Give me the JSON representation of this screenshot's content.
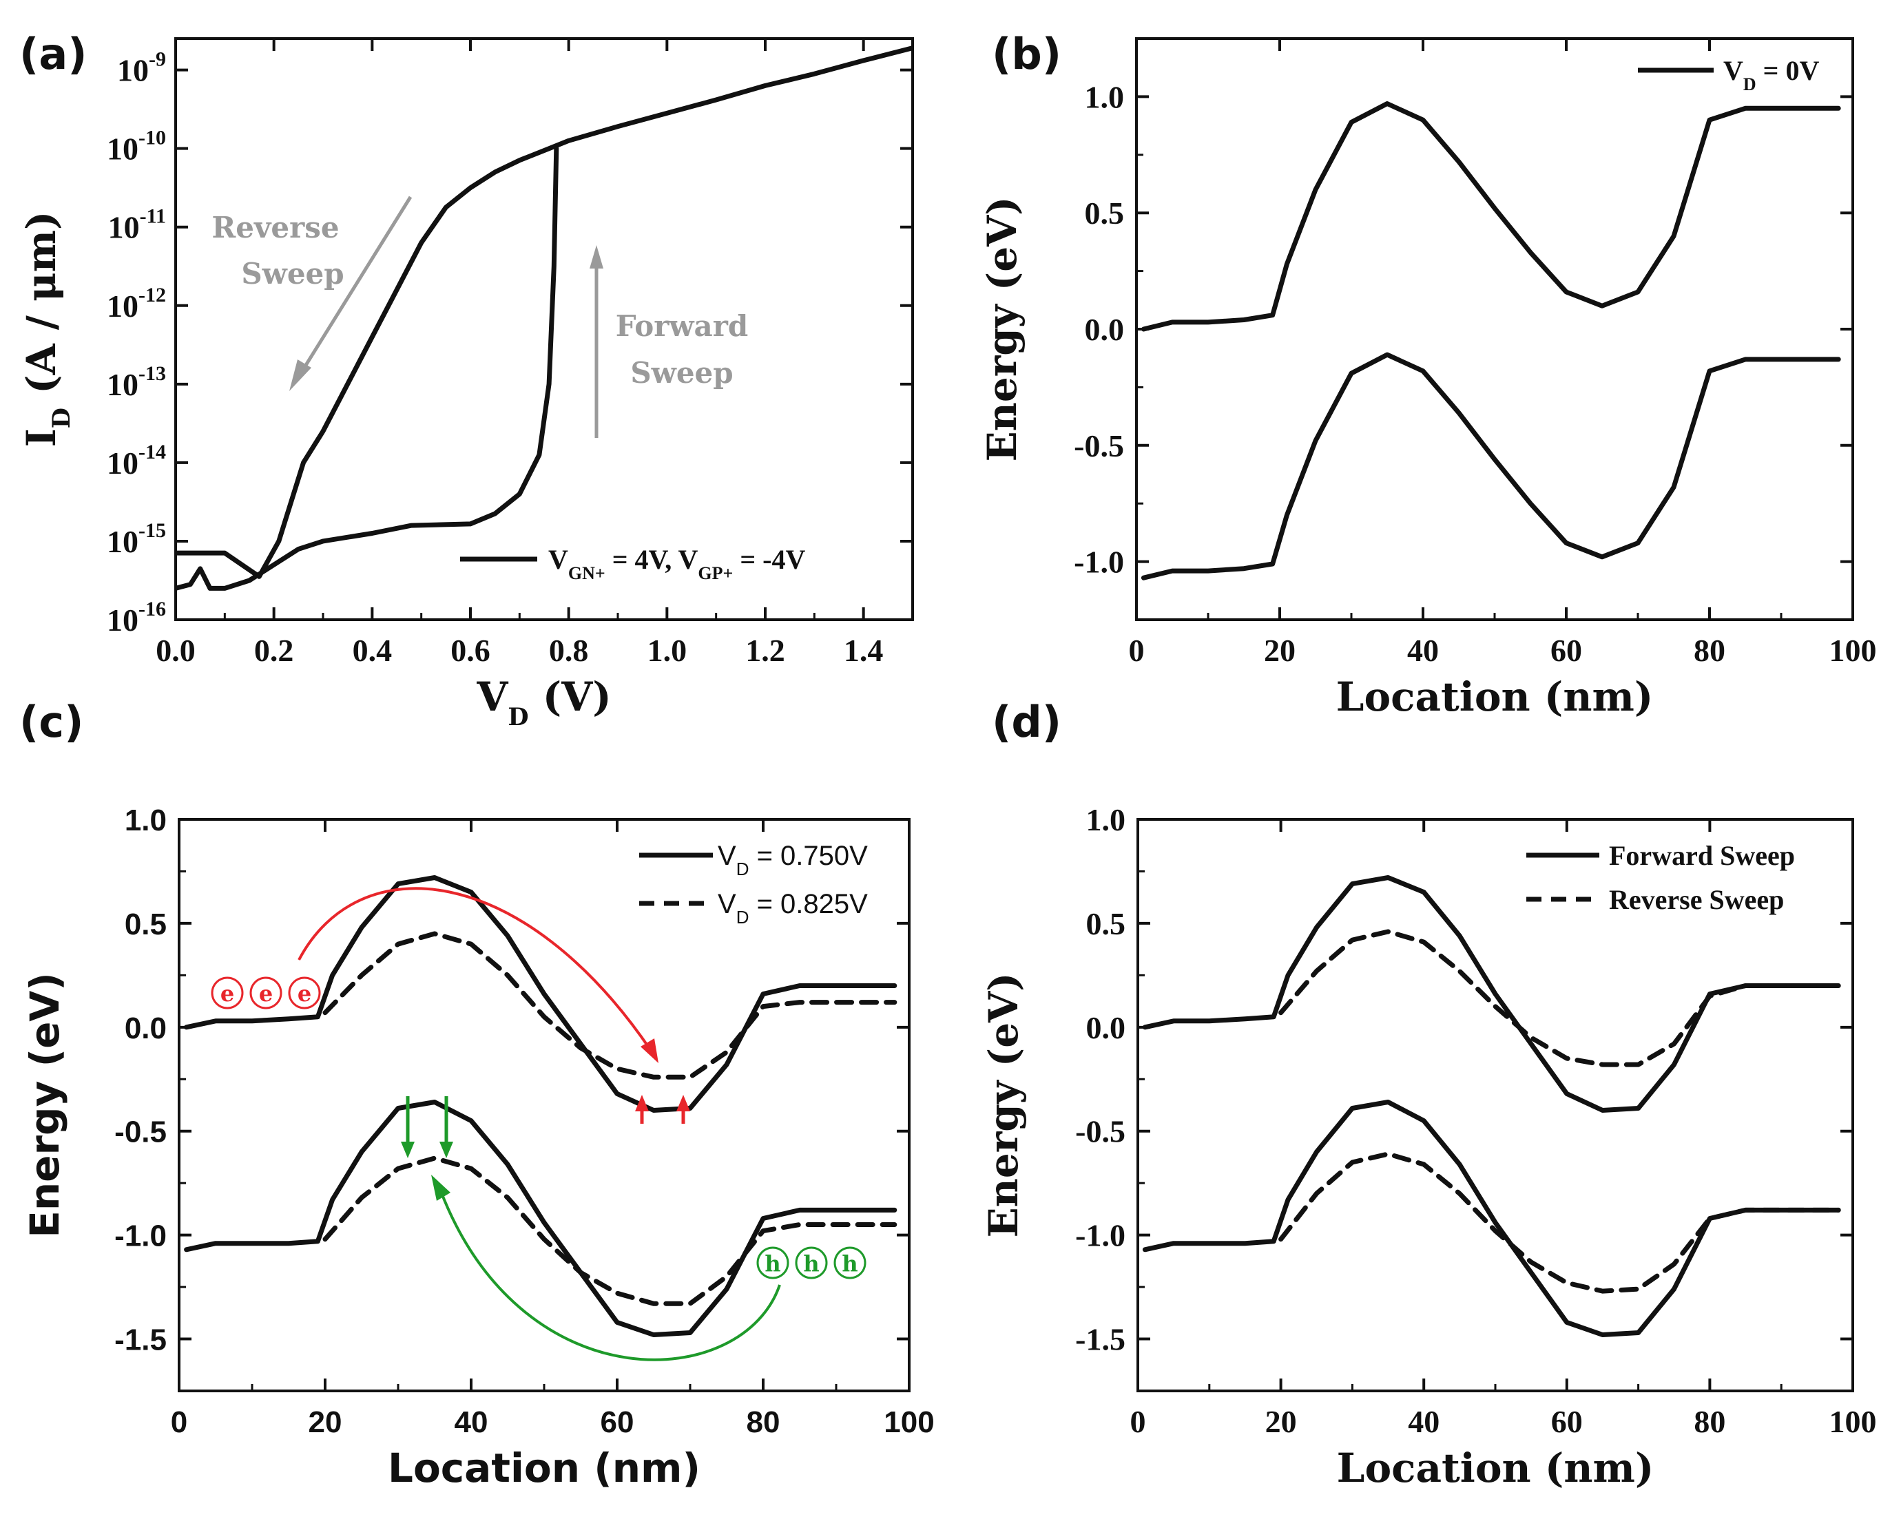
{
  "chart_data": [
    {
      "panel": "(a)",
      "type": "line",
      "xlabel": "V_D (V)",
      "ylabel": "I_D (A / μm)",
      "xlim": [
        0.0,
        1.5
      ],
      "ylim": [
        -16,
        -8.6
      ],
      "yscale": "log",
      "xticks": [
        "0.0",
        "0.2",
        "0.4",
        "0.6",
        "0.8",
        "1.0",
        "1.2",
        "1.4"
      ],
      "yticks": [
        -16,
        -15,
        -14,
        -13,
        -12,
        -11,
        -10,
        -9
      ],
      "legend": "V_GN+ = 4V, V_GP+ = -4V",
      "annotations": [
        {
          "text": "Reverse Sweep",
          "lines": [
            "Reverse",
            "Sweep"
          ],
          "color": "#9a9a9a"
        },
        {
          "text": "Forward Sweep",
          "lines": [
            "Forward",
            "Sweep"
          ],
          "color": "#9a9a9a"
        }
      ],
      "series": [
        {
          "name": "Reverse Sweep",
          "x": [
            0.0,
            0.1,
            0.17,
            0.21,
            0.26,
            0.3,
            0.35,
            0.4,
            0.45,
            0.5,
            0.55,
            0.6,
            0.65,
            0.7,
            0.76,
            0.8,
            0.9,
            1.0,
            1.1,
            1.2,
            1.3,
            1.4,
            1.5
          ],
          "y": [
            -15.15,
            -15.15,
            -15.45,
            -15.0,
            -14.0,
            -13.6,
            -13.0,
            -12.4,
            -11.8,
            -11.2,
            -10.75,
            -10.5,
            -10.3,
            -10.15,
            -10.0,
            -9.9,
            -9.72,
            -9.55,
            -9.38,
            -9.2,
            -9.05,
            -8.88,
            -8.72
          ]
        },
        {
          "name": "Forward Sweep",
          "x": [
            0.0,
            0.03,
            0.05,
            0.07,
            0.1,
            0.15,
            0.2,
            0.25,
            0.3,
            0.4,
            0.48,
            0.6,
            0.65,
            0.7,
            0.74,
            0.76,
            0.77,
            0.775
          ],
          "y": [
            -15.6,
            -15.55,
            -15.35,
            -15.6,
            -15.6,
            -15.5,
            -15.3,
            -15.1,
            -15.0,
            -14.9,
            -14.8,
            -14.78,
            -14.65,
            -14.4,
            -13.9,
            -13.0,
            -11.5,
            -10.0
          ]
        }
      ]
    },
    {
      "panel": "(b)",
      "type": "line",
      "xlabel": "Location (nm)",
      "ylabel": "Energy (eV)",
      "xlim": [
        0,
        100
      ],
      "ylim": [
        -1.25,
        1.25
      ],
      "xticks": [
        0,
        20,
        40,
        60,
        80,
        100
      ],
      "yticks": [
        1.0,
        0.5,
        0.0,
        -0.5,
        -1.0
      ],
      "ytick_labels": [
        "1.0",
        "0.5",
        "0.0",
        "-0.5",
        "-1.0"
      ],
      "legend": "V_D = 0V",
      "series": [
        {
          "name": "Conduction band, V_D = 0V",
          "x": [
            1,
            5,
            10,
            15,
            19,
            21,
            25,
            30,
            35,
            40,
            45,
            50,
            55,
            60,
            65,
            70,
            75,
            80,
            85,
            90,
            98
          ],
          "y": [
            0.0,
            0.03,
            0.03,
            0.04,
            0.06,
            0.28,
            0.6,
            0.89,
            0.97,
            0.9,
            0.72,
            0.52,
            0.33,
            0.16,
            0.1,
            0.16,
            0.4,
            0.9,
            0.95,
            0.95,
            0.95
          ]
        },
        {
          "name": "Valence band, V_D = 0V",
          "x": [
            1,
            5,
            10,
            15,
            19,
            21,
            25,
            30,
            35,
            40,
            45,
            50,
            55,
            60,
            65,
            70,
            75,
            80,
            85,
            90,
            98
          ],
          "y": [
            -1.07,
            -1.04,
            -1.04,
            -1.03,
            -1.01,
            -0.8,
            -0.48,
            -0.19,
            -0.11,
            -0.18,
            -0.36,
            -0.56,
            -0.75,
            -0.92,
            -0.98,
            -0.92,
            -0.68,
            -0.18,
            -0.13,
            -0.13,
            -0.13
          ]
        }
      ]
    },
    {
      "panel": "(c)",
      "type": "line",
      "xlabel": "Location (nm)",
      "ylabel": "Energy (eV)",
      "xlim": [
        0,
        100
      ],
      "ylim": [
        -1.75,
        1.0
      ],
      "xticks": [
        0,
        20,
        40,
        60,
        80,
        100
      ],
      "yticks": [
        1.0,
        0.5,
        0.0,
        -0.5,
        -1.0,
        -1.5
      ],
      "ytick_labels": [
        "1.0",
        "0.5",
        "0.0",
        "-0.5",
        "-1.0",
        "-1.5"
      ],
      "legend": [
        "V_D = 0.750V",
        "V_D = 0.825V"
      ],
      "carriers": {
        "electron": "e",
        "hole": "h"
      },
      "colors": {
        "electron": "#e8262b",
        "hole": "#1e9a2a"
      },
      "series": [
        {
          "name": "V_D = 0.750V conduction",
          "style": "solid",
          "x": [
            1,
            5,
            10,
            15,
            19,
            21,
            25,
            30,
            35,
            40,
            45,
            50,
            55,
            60,
            65,
            70,
            75,
            80,
            85,
            90,
            98
          ],
          "y": [
            0.0,
            0.03,
            0.03,
            0.04,
            0.05,
            0.25,
            0.48,
            0.69,
            0.72,
            0.65,
            0.44,
            0.16,
            -0.08,
            -0.32,
            -0.4,
            -0.39,
            -0.18,
            0.16,
            0.2,
            0.2,
            0.2
          ]
        },
        {
          "name": "V_D = 0.825V conduction",
          "style": "dashed",
          "x": [
            20,
            25,
            30,
            35,
            40,
            45,
            50,
            55,
            60,
            65,
            70,
            75,
            80,
            85,
            90,
            98
          ],
          "y": [
            0.07,
            0.25,
            0.4,
            0.45,
            0.4,
            0.25,
            0.05,
            -0.1,
            -0.2,
            -0.24,
            -0.24,
            -0.12,
            0.1,
            0.12,
            0.12,
            0.12
          ]
        },
        {
          "name": "V_D = 0.750V valence",
          "style": "solid",
          "x": [
            1,
            5,
            10,
            15,
            19,
            21,
            25,
            30,
            35,
            40,
            45,
            50,
            55,
            60,
            65,
            70,
            75,
            80,
            85,
            90,
            98
          ],
          "y": [
            -1.07,
            -1.04,
            -1.04,
            -1.04,
            -1.03,
            -0.83,
            -0.6,
            -0.39,
            -0.36,
            -0.45,
            -0.66,
            -0.94,
            -1.18,
            -1.42,
            -1.48,
            -1.47,
            -1.26,
            -0.92,
            -0.88,
            -0.88,
            -0.88
          ]
        },
        {
          "name": "V_D = 0.825V valence",
          "style": "dashed",
          "x": [
            20,
            25,
            30,
            35,
            40,
            45,
            50,
            55,
            60,
            65,
            70,
            75,
            80,
            85,
            90,
            98
          ],
          "y": [
            -1.02,
            -0.82,
            -0.68,
            -0.63,
            -0.68,
            -0.82,
            -1.02,
            -1.18,
            -1.28,
            -1.33,
            -1.33,
            -1.2,
            -0.98,
            -0.95,
            -0.95,
            -0.95
          ]
        }
      ]
    },
    {
      "panel": "(d)",
      "type": "line",
      "xlabel": "Location (nm)",
      "ylabel": "Energy (eV)",
      "xlim": [
        0,
        100
      ],
      "ylim": [
        -1.75,
        1.0
      ],
      "xticks": [
        0,
        20,
        40,
        60,
        80,
        100
      ],
      "yticks": [
        1.0,
        0.5,
        0.0,
        -0.5,
        -1.0,
        -1.5
      ],
      "ytick_labels": [
        "1.0",
        "0.5",
        "0.0",
        "-0.5",
        "-1.0",
        "-1.5"
      ],
      "legend": [
        "Forward Sweep",
        "Reverse Sweep"
      ],
      "series": [
        {
          "name": "Forward Sweep conduction",
          "style": "solid",
          "x": [
            1,
            5,
            10,
            15,
            19,
            21,
            25,
            30,
            35,
            40,
            45,
            50,
            55,
            60,
            65,
            70,
            75,
            80,
            85,
            90,
            98
          ],
          "y": [
            0.0,
            0.03,
            0.03,
            0.04,
            0.05,
            0.25,
            0.48,
            0.69,
            0.72,
            0.65,
            0.44,
            0.16,
            -0.08,
            -0.32,
            -0.4,
            -0.39,
            -0.18,
            0.16,
            0.2,
            0.2,
            0.2
          ]
        },
        {
          "name": "Reverse Sweep conduction",
          "style": "dashed",
          "x": [
            20,
            25,
            30,
            35,
            40,
            45,
            50,
            55,
            60,
            65,
            70,
            75,
            80,
            85,
            90,
            98
          ],
          "y": [
            0.07,
            0.27,
            0.42,
            0.46,
            0.41,
            0.27,
            0.1,
            -0.05,
            -0.15,
            -0.18,
            -0.18,
            -0.08,
            0.15,
            0.2,
            0.2,
            0.2
          ]
        },
        {
          "name": "Forward Sweep valence",
          "style": "solid",
          "x": [
            1,
            5,
            10,
            15,
            19,
            21,
            25,
            30,
            35,
            40,
            45,
            50,
            55,
            60,
            65,
            70,
            75,
            80,
            85,
            90,
            98
          ],
          "y": [
            -1.07,
            -1.04,
            -1.04,
            -1.04,
            -1.03,
            -0.83,
            -0.6,
            -0.39,
            -0.36,
            -0.45,
            -0.66,
            -0.94,
            -1.18,
            -1.42,
            -1.48,
            -1.47,
            -1.26,
            -0.92,
            -0.88,
            -0.88,
            -0.88
          ]
        },
        {
          "name": "Reverse Sweep valence",
          "style": "dashed",
          "x": [
            20,
            25,
            30,
            35,
            40,
            45,
            50,
            55,
            60,
            65,
            70,
            75,
            80,
            85,
            90,
            98
          ],
          "y": [
            -1.02,
            -0.8,
            -0.65,
            -0.61,
            -0.66,
            -0.8,
            -0.98,
            -1.13,
            -1.23,
            -1.27,
            -1.26,
            -1.14,
            -0.92,
            -0.88,
            -0.88,
            -0.88
          ]
        }
      ]
    }
  ]
}
